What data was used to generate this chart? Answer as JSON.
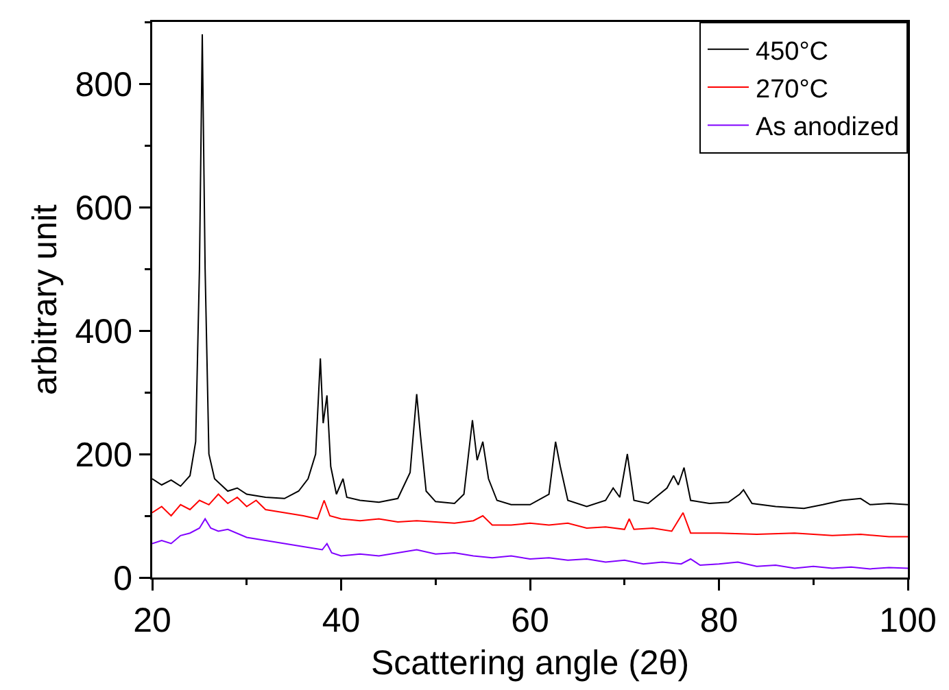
{
  "chart_data": {
    "type": "line",
    "xlabel": "Scattering angle (2θ)",
    "ylabel": "arbitrary unit",
    "xlim": [
      20,
      100
    ],
    "ylim": [
      0,
      900
    ],
    "xticks": [
      20,
      40,
      60,
      80,
      100
    ],
    "yticks": [
      0,
      200,
      400,
      600,
      800
    ],
    "grid": false,
    "legend": "top right",
    "marker": "none",
    "line_style": "solid",
    "series": [
      {
        "name": "450°C",
        "color": "#000000",
        "x": [
          20,
          21,
          22,
          23,
          24,
          24.6,
          25.0,
          25.3,
          25.6,
          26.0,
          26.6,
          28,
          29,
          30,
          32,
          34,
          35.5,
          36.5,
          37.3,
          37.8,
          38.1,
          38.5,
          38.9,
          39.5,
          40.2,
          40.6,
          42,
          44,
          46,
          47.3,
          48,
          48.4,
          49,
          50,
          52,
          53,
          53.9,
          54.4,
          55,
          55.6,
          56.5,
          58,
          60,
          62,
          62.7,
          63.2,
          64,
          66,
          68,
          68.8,
          69.5,
          70.3,
          71,
          72.5,
          74.5,
          75.2,
          75.7,
          76.3,
          77,
          79,
          81,
          82.2,
          82.6,
          83.5,
          86,
          89,
          91,
          93,
          95,
          96,
          98,
          100
        ],
        "values": [
          160,
          150,
          158,
          148,
          165,
          220,
          500,
          880,
          500,
          200,
          160,
          140,
          145,
          135,
          130,
          128,
          140,
          160,
          200,
          355,
          250,
          295,
          180,
          135,
          160,
          130,
          125,
          122,
          128,
          170,
          297,
          230,
          140,
          123,
          120,
          135,
          255,
          190,
          220,
          160,
          125,
          118,
          118,
          135,
          220,
          180,
          125,
          115,
          125,
          145,
          130,
          200,
          125,
          120,
          145,
          165,
          150,
          178,
          125,
          120,
          122,
          135,
          142,
          120,
          115,
          112,
          118,
          125,
          128,
          118,
          120,
          118
        ]
      },
      {
        "name": "270°C",
        "color": "#ff0000",
        "x": [
          20,
          21,
          22,
          23,
          24,
          25,
          26,
          27,
          28,
          29,
          30,
          31,
          32,
          34,
          36,
          37.5,
          38.2,
          38.8,
          40,
          42,
          44,
          46,
          48,
          50,
          52,
          54,
          55,
          56,
          58,
          60,
          62,
          64,
          66,
          68,
          70,
          70.5,
          71,
          73,
          75,
          76.2,
          77,
          80,
          84,
          88,
          92,
          95,
          98,
          100
        ],
        "values": [
          105,
          115,
          100,
          118,
          110,
          125,
          118,
          135,
          120,
          130,
          115,
          125,
          110,
          105,
          100,
          95,
          125,
          100,
          95,
          92,
          95,
          90,
          92,
          90,
          88,
          92,
          100,
          85,
          85,
          88,
          85,
          88,
          80,
          82,
          78,
          95,
          78,
          80,
          75,
          105,
          72,
          72,
          70,
          72,
          68,
          70,
          66,
          66
        ]
      },
      {
        "name": "As anodized",
        "color": "#8000ff",
        "x": [
          20,
          21,
          22,
          23,
          24,
          25,
          25.6,
          26.2,
          27,
          28,
          30,
          32,
          34,
          36,
          38,
          38.5,
          39,
          40,
          42,
          44,
          46,
          48,
          50,
          52,
          54,
          56,
          58,
          60,
          62,
          64,
          66,
          68,
          70,
          72,
          74,
          76,
          77,
          78,
          80,
          82,
          84,
          86,
          88,
          90,
          92,
          94,
          96,
          98,
          100
        ],
        "values": [
          55,
          60,
          55,
          68,
          72,
          80,
          95,
          80,
          75,
          78,
          65,
          60,
          55,
          50,
          45,
          55,
          40,
          35,
          38,
          35,
          40,
          45,
          38,
          40,
          35,
          32,
          35,
          30,
          32,
          28,
          30,
          25,
          28,
          22,
          25,
          22,
          30,
          20,
          22,
          25,
          18,
          20,
          15,
          18,
          15,
          17,
          14,
          16,
          15
        ]
      }
    ]
  }
}
